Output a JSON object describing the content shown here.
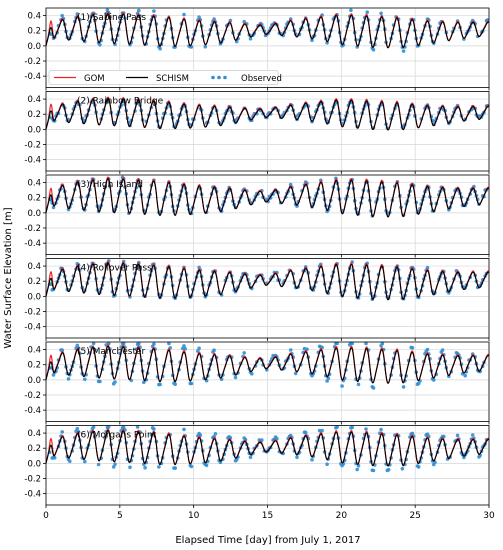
{
  "chart_data": {
    "type": "line",
    "xlabel": "Elapsed Time [day] from July 1, 2017",
    "ylabel": "Water Surface Elevation [m]",
    "xlim": [
      0,
      30
    ],
    "ylim": [
      -0.55,
      0.5
    ],
    "x_ticks": [
      0,
      5,
      10,
      15,
      20,
      25,
      30
    ],
    "y_ticks": [
      -0.4,
      -0.2,
      0.0,
      0.2,
      0.4
    ],
    "y_tick_labels": [
      "-0.4",
      "-0.2",
      "0.0",
      "0.2",
      "0.4"
    ],
    "grid": true,
    "legend_position": "bottom-left of panel 1",
    "series": [
      {
        "name": "GOM",
        "color": "#e8262a",
        "style": "line"
      },
      {
        "name": "SCHISM",
        "color": "#000000",
        "style": "line"
      },
      {
        "name": "Observed",
        "color": "#2e8fd6",
        "style": "markers"
      }
    ],
    "tide": {
      "period_days": 1.03,
      "trough_day_offset": 0.55,
      "model_mean": 0.2,
      "obs_mean": 0.21
    },
    "amplitude_knots": {
      "days": [
        0,
        2,
        4,
        6,
        8,
        10,
        12,
        14,
        15,
        16,
        18,
        20,
        22,
        24,
        26,
        28,
        30
      ],
      "factors": [
        0.5,
        0.8,
        1.0,
        1.0,
        1.0,
        0.85,
        0.7,
        0.4,
        0.3,
        0.45,
        0.7,
        1.0,
        1.05,
        1.0,
        0.75,
        0.55,
        0.45
      ]
    },
    "panels": [
      {
        "label": "(1) Sabine Pass",
        "amplitude": 0.22,
        "obs_amplitude": 0.26,
        "show_legend": true
      },
      {
        "label": "(2) Rainbow Bridge",
        "amplitude": 0.2,
        "obs_amplitude": 0.18,
        "show_legend": false
      },
      {
        "label": "(3) High Island",
        "amplitude": 0.25,
        "obs_amplitude": 0.25,
        "show_legend": false
      },
      {
        "label": "(4) Rollover Pass",
        "amplitude": 0.24,
        "obs_amplitude": 0.25,
        "show_legend": false
      },
      {
        "label": "(5) Manchester",
        "amplitude": 0.24,
        "obs_amplitude": 0.32,
        "show_legend": false
      },
      {
        "label": "(6) Morgans Point",
        "amplitude": 0.23,
        "obs_amplitude": 0.3,
        "show_legend": false
      }
    ]
  }
}
